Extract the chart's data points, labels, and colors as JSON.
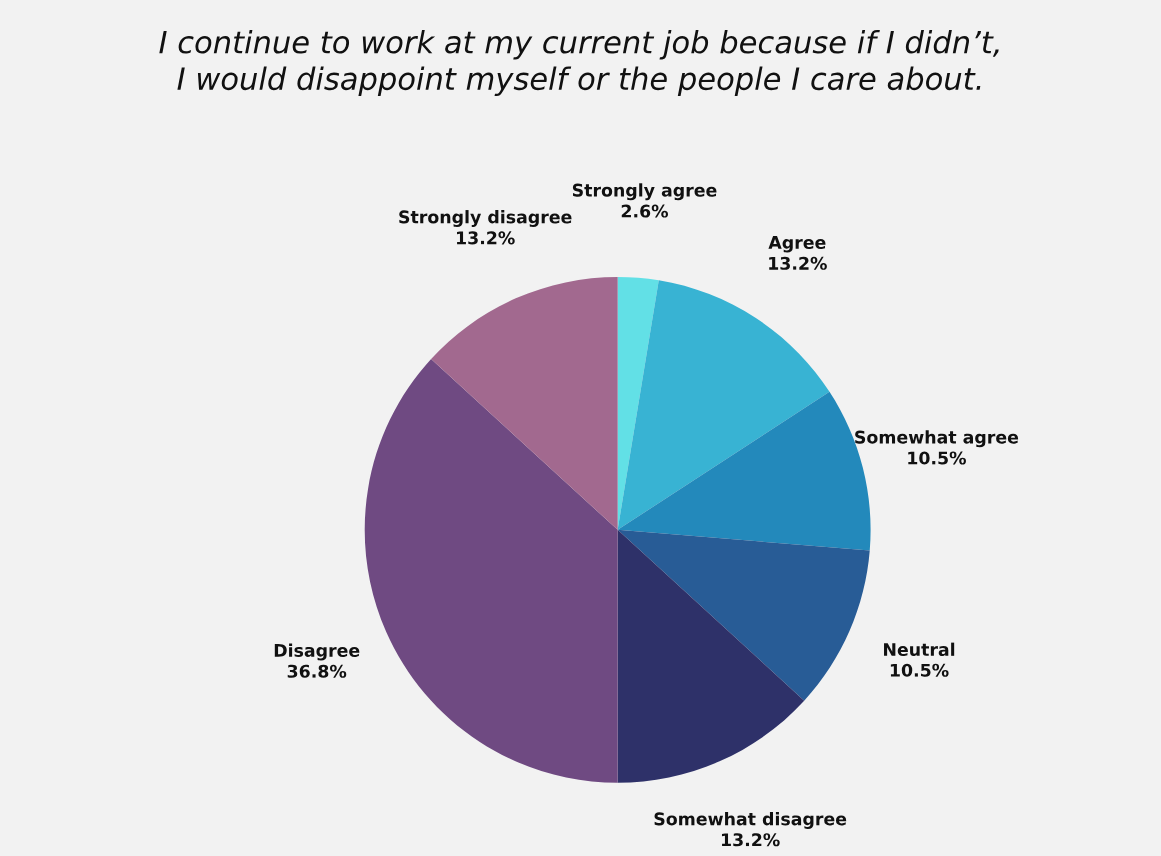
{
  "chart_data": {
    "type": "pie",
    "title": "I continue to work at my current job because if I didn’t,\nI would disappoint myself or the people I care about.",
    "categories": [
      "Strongly agree",
      "Agree",
      "Somewhat agree",
      "Neutral",
      "Somewhat disagree",
      "Disagree",
      "Strongly disagree"
    ],
    "values": [
      2.6,
      13.2,
      10.5,
      10.5,
      13.2,
      36.8,
      13.2
    ],
    "value_labels": [
      "2.6%",
      "13.2%",
      "10.5%",
      "10.5%",
      "13.2%",
      "36.8%",
      "13.2%"
    ],
    "colors": [
      "#62e0e6",
      "#38b3d3",
      "#2389bb",
      "#285c96",
      "#2e3169",
      "#6f4a82",
      "#a2698f"
    ]
  }
}
